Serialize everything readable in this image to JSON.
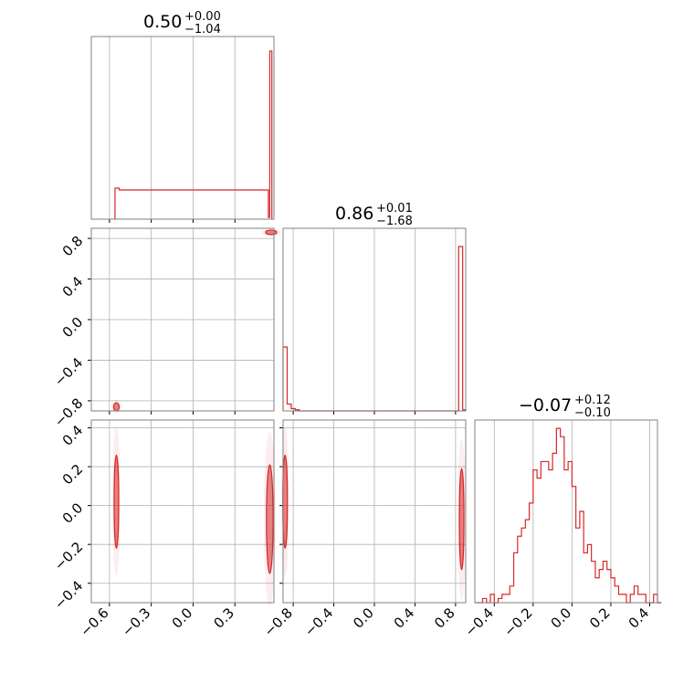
{
  "colors": {
    "accent": "#d62728",
    "grid": "#b0b0b0",
    "frame": "#808080"
  },
  "chart_data": [
    {
      "type": "histogram",
      "panel": "diag-0",
      "title": {
        "value": "0.50",
        "upper": "+0.00",
        "lower": "−1.04"
      },
      "xlim": [
        -0.73,
        0.58
      ],
      "xticks": [
        -0.6,
        -0.3,
        0.0,
        0.3
      ],
      "bins": {
        "edges": [
          -0.56,
          -0.53,
          0.54,
          0.55,
          0.565
        ],
        "counts": [
          0.17,
          0.16,
          0.01,
          0.92
        ]
      },
      "grid": true
    },
    {
      "type": "histogram",
      "panel": "diag-1",
      "title": {
        "value": "0.86",
        "upper": "+0.01",
        "lower": "−1.68"
      },
      "xlim": [
        -0.9,
        0.9
      ],
      "xticks": [
        -0.8,
        -0.4,
        0.0,
        0.4,
        0.8
      ],
      "bins": {
        "edges": [
          -0.9,
          -0.86,
          -0.82,
          -0.78,
          -0.74,
          0.83,
          0.87,
          0.9
        ],
        "counts": [
          0.28,
          0.03,
          0.01,
          0.005,
          0.0,
          0.72,
          0.005
        ]
      },
      "grid": true
    },
    {
      "type": "histogram",
      "panel": "diag-2",
      "title": {
        "value": "−0.07",
        "upper": "+0.12",
        "lower": "−0.10"
      },
      "xlim": [
        -0.5,
        0.44
      ],
      "xticks": [
        -0.4,
        -0.2,
        0.0,
        0.2,
        0.4
      ],
      "bins": {
        "start": -0.5,
        "width": 0.02,
        "counts": [
          0,
          0,
          0.5,
          0,
          1,
          0,
          0.5,
          1,
          1,
          2,
          6,
          8,
          9,
          10,
          12,
          16,
          15,
          17,
          17,
          16,
          18,
          21,
          20,
          16,
          17,
          14,
          9,
          11,
          6,
          7,
          5,
          3,
          4,
          5,
          4,
          3,
          2,
          1,
          1,
          0,
          1,
          2,
          1,
          1,
          0,
          0,
          1,
          0
        ]
      },
      "ylim": [
        0,
        22
      ],
      "grid": true
    },
    {
      "type": "contour",
      "panel": "pair-1-0",
      "x_range": [
        -0.73,
        0.58
      ],
      "y_range": [
        -0.9,
        0.9
      ],
      "yticks": [
        -0.8,
        -0.4,
        0.0,
        0.4,
        0.8
      ],
      "clusters": [
        {
          "x": 0.56,
          "y": 0.86,
          "spread_x": 0.02,
          "spread_y": 0.01
        },
        {
          "x": -0.55,
          "y": -0.86,
          "spread_x": 0.01,
          "spread_y": 0.02
        }
      ]
    },
    {
      "type": "contour",
      "panel": "pair-2-0",
      "x_range": [
        -0.73,
        0.58
      ],
      "y_range": [
        -0.5,
        0.44
      ],
      "yticks": [
        -0.4,
        -0.2,
        0.0,
        0.2,
        0.4
      ],
      "clusters": [
        {
          "x": -0.55,
          "y": 0.02,
          "spread_x": 0.008,
          "spread_y": 0.12
        },
        {
          "x": 0.55,
          "y": -0.07,
          "spread_x": 0.012,
          "spread_y": 0.14
        }
      ]
    },
    {
      "type": "contour",
      "panel": "pair-2-1",
      "x_range": [
        -0.9,
        0.9
      ],
      "y_range": [
        -0.5,
        0.44
      ],
      "clusters": [
        {
          "x": -0.88,
          "y": 0.02,
          "spread_x": 0.01,
          "spread_y": 0.12
        },
        {
          "x": 0.86,
          "y": -0.07,
          "spread_x": 0.01,
          "spread_y": 0.13
        }
      ]
    }
  ],
  "axes": {
    "x0": {
      "ticks": [
        "−0.6",
        "−0.3",
        "0.0",
        "0.3"
      ]
    },
    "x1": {
      "ticks": [
        "−0.8",
        "−0.4",
        "0.0",
        "0.4",
        "0.8"
      ]
    },
    "x2": {
      "ticks": [
        "−0.4",
        "−0.2",
        "0.0",
        "0.2",
        "0.4"
      ]
    },
    "y1": {
      "ticks": [
        "0.8",
        "0.4",
        "0.0",
        "−0.4",
        "−0.8"
      ]
    },
    "y2": {
      "ticks": [
        "0.4",
        "0.2",
        "0.0",
        "−0.2",
        "−0.4"
      ]
    }
  }
}
